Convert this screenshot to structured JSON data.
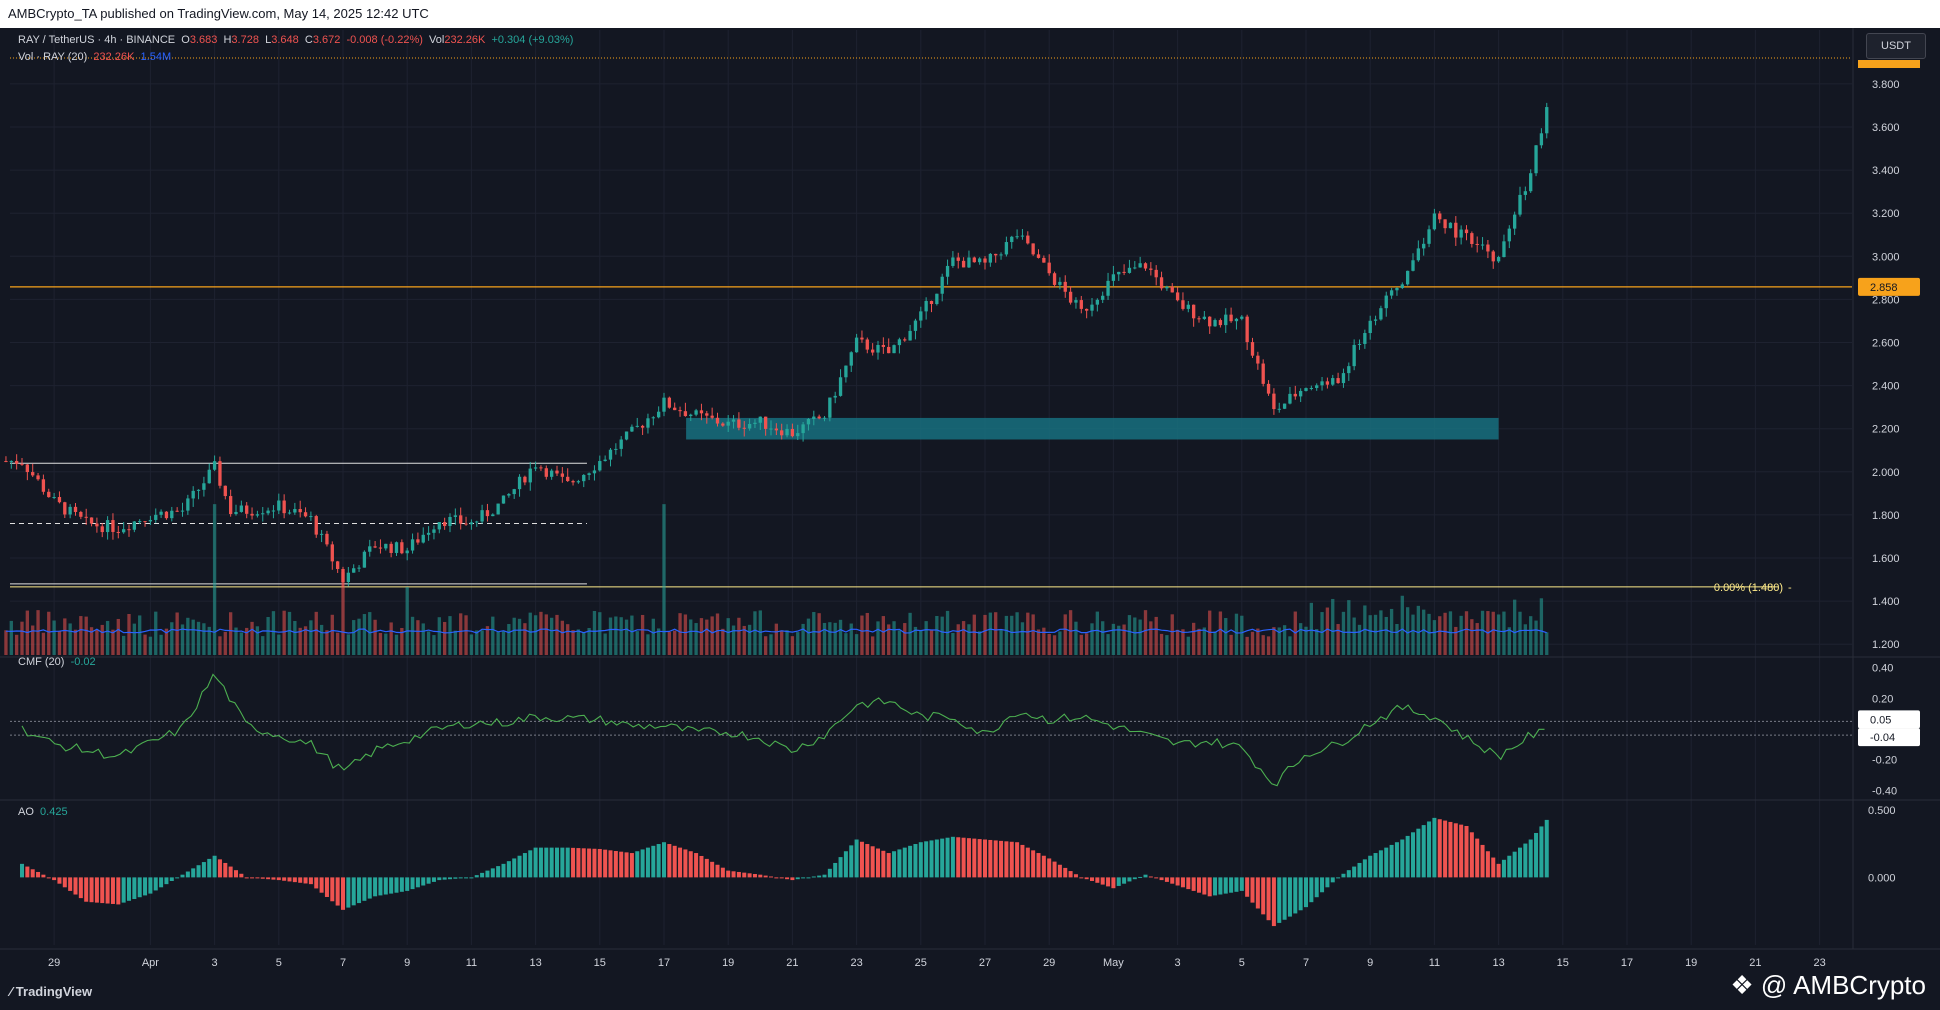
{
  "header": {
    "published": "AMBCrypto_TA published on TradingView.com, May 14, 2025 12:42 UTC"
  },
  "legend": {
    "symbol": "RAY / TetherUS · 4h · BINANCE",
    "o_label": "O",
    "o": "3.683",
    "h_label": "H",
    "h": "3.728",
    "l_label": "L",
    "l": "3.648",
    "c_label": "C",
    "c": "3.672",
    "change": "-0.008 (-0.22%)",
    "vol_label": "Vol",
    "vol": "232.26K",
    "vol_change": "+0.304 (+9.03%)",
    "vol_line_label": "Vol · RAY (20)",
    "vol_value": "232.26K",
    "vol_ma": "1.54M"
  },
  "currency_button": "USDT",
  "cmf": {
    "label": "CMF (20)",
    "value": "-0.02",
    "badge_upper": "0.05",
    "badge_lower": "-0.04"
  },
  "ao": {
    "label": "AO",
    "value": "0.425"
  },
  "level_label": "0.00% (1.480)",
  "price_badge": "2.858",
  "footer": {
    "tradingview": "TradingView",
    "watermark": "@ AMBCrypto"
  },
  "colors": {
    "background": "#131722",
    "up": "#26a69a",
    "down": "#ef5350",
    "resistance": "#f7a21b",
    "demand_zone": "#17707f",
    "fib": "#ffeb8a",
    "cmf_line": "#4caf50",
    "vol_ma": "#2962ff"
  },
  "chart_data": [
    {
      "type": "candlestick",
      "pane": "price",
      "timeframe": "4h",
      "y_axis_ticks": [
        "3.800",
        "3.600",
        "3.400",
        "3.200",
        "3.000",
        "2.800",
        "2.600",
        "2.400",
        "2.200",
        "2.000",
        "1.800",
        "1.600",
        "1.400",
        "1.200"
      ],
      "ylim": [
        1.15,
        4.05
      ],
      "x_axis_ticks": [
        "29",
        "Apr",
        "3",
        "5",
        "7",
        "9",
        "11",
        "13",
        "15",
        "17",
        "19",
        "21",
        "23",
        "25",
        "27",
        "29",
        "May",
        "3",
        "5",
        "7",
        "9",
        "11",
        "13",
        "15",
        "17",
        "19",
        "21",
        "23"
      ],
      "horizontal_levels": [
        {
          "name": "resistance",
          "value": 2.858
        },
        {
          "name": "range-high",
          "value": 2.04
        },
        {
          "name": "range-mid",
          "value": 1.76
        },
        {
          "name": "range-low",
          "value": 1.48
        },
        {
          "name": "fib-0",
          "value": 1.48
        }
      ],
      "demand_zone": {
        "from": 2.15,
        "to": 2.25,
        "start": "Apr 18",
        "end": "May 13"
      },
      "series_path": [
        [
          "Mar 28",
          2.05
        ],
        [
          "Mar 29",
          1.86
        ],
        [
          "Mar 30",
          1.76
        ],
        [
          "Mar 31",
          1.74
        ],
        [
          "Apr 1",
          1.8
        ],
        [
          "Apr 2",
          1.82
        ],
        [
          "Apr 3",
          2.02
        ],
        [
          "Apr 3.5",
          1.82
        ],
        [
          "Apr 4",
          1.82
        ],
        [
          "Apr 5",
          1.84
        ],
        [
          "Apr 6",
          1.78
        ],
        [
          "Apr 7",
          1.5
        ],
        [
          "Apr 8",
          1.66
        ],
        [
          "Apr 9",
          1.64
        ],
        [
          "Apr 10",
          1.78
        ],
        [
          "Apr 11",
          1.76
        ],
        [
          "Apr 12",
          1.86
        ],
        [
          "Apr 13",
          2.04
        ],
        [
          "Apr 14",
          1.94
        ],
        [
          "Apr 15",
          2.05
        ],
        [
          "Apr 16",
          2.18
        ],
        [
          "Apr 17",
          2.32
        ],
        [
          "Apr 18",
          2.26
        ],
        [
          "Apr 19",
          2.22
        ],
        [
          "Apr 20",
          2.23
        ],
        [
          "Apr 21",
          2.18
        ],
        [
          "Apr 22",
          2.26
        ],
        [
          "Apr 23",
          2.6
        ],
        [
          "Apr 24",
          2.55
        ],
        [
          "Apr 25",
          2.72
        ],
        [
          "Apr 26",
          2.98
        ],
        [
          "Apr 27",
          2.96
        ],
        [
          "Apr 28",
          3.1
        ],
        [
          "Apr 29",
          2.92
        ],
        [
          "Apr 30",
          2.74
        ],
        [
          "May 1",
          2.9
        ],
        [
          "May 2",
          2.96
        ],
        [
          "May 3",
          2.78
        ],
        [
          "May 4",
          2.7
        ],
        [
          "May 5",
          2.7
        ],
        [
          "May 6",
          2.28
        ],
        [
          "May 7",
          2.4
        ],
        [
          "May 8",
          2.42
        ],
        [
          "May 9",
          2.7
        ],
        [
          "May 10",
          2.88
        ],
        [
          "May 11",
          3.18
        ],
        [
          "May 12",
          3.08
        ],
        [
          "May 13",
          2.98
        ],
        [
          "May 14",
          3.4
        ],
        [
          "May 14.5",
          3.67
        ]
      ]
    },
    {
      "type": "bar",
      "pane": "volume",
      "name": "Vol · RAY (20)",
      "spikes": [
        [
          "Apr 3",
          1.0
        ],
        [
          "Apr 7",
          0.55
        ],
        [
          "Apr 9",
          0.45
        ],
        [
          "Apr 17",
          1.0
        ]
      ]
    },
    {
      "type": "line",
      "pane": "cmf",
      "name": "CMF (20)",
      "y_axis_ticks": [
        "0.40",
        "0.20",
        "-0.20",
        "-0.40"
      ],
      "ylim": [
        -0.45,
        0.45
      ],
      "series_path": [
        [
          "Mar 28",
          0.0
        ],
        [
          "Mar 29",
          -0.1
        ],
        [
          "Mar 31",
          -0.18
        ],
        [
          "Apr 2",
          0.0
        ],
        [
          "Apr 3",
          0.36
        ],
        [
          "Apr 4",
          0.02
        ],
        [
          "Apr 6",
          -0.1
        ],
        [
          "Apr 7",
          -0.28
        ],
        [
          "Apr 8",
          -0.14
        ],
        [
          "Apr 10",
          0.0
        ],
        [
          "Apr 11",
          0.04
        ],
        [
          "Apr 12",
          0.04
        ],
        [
          "Apr 13",
          0.08
        ],
        [
          "Apr 15",
          0.06
        ],
        [
          "Apr 16",
          0.02
        ],
        [
          "Apr 17",
          0.02
        ],
        [
          "Apr 18",
          -0.02
        ],
        [
          "Apr 19",
          -0.02
        ],
        [
          "Apr 20",
          -0.06
        ],
        [
          "Apr 21",
          -0.14
        ],
        [
          "Apr 22",
          -0.04
        ],
        [
          "Apr 23",
          0.16
        ],
        [
          "Apr 24",
          0.18
        ],
        [
          "Apr 25",
          0.08
        ],
        [
          "Apr 26",
          0.08
        ],
        [
          "Apr 27",
          -0.04
        ],
        [
          "Apr 28",
          0.12
        ],
        [
          "Apr 29",
          0.06
        ],
        [
          "Apr 30",
          0.08
        ],
        [
          "May 1",
          0.02
        ],
        [
          "May 2",
          -0.04
        ],
        [
          "May 3",
          -0.1
        ],
        [
          "May 4",
          -0.08
        ],
        [
          "May 5",
          -0.12
        ],
        [
          "May 6",
          -0.36
        ],
        [
          "May 7",
          -0.16
        ],
        [
          "May 8",
          -0.1
        ],
        [
          "May 9",
          0.04
        ],
        [
          "May 10",
          0.14
        ],
        [
          "May 11",
          0.08
        ],
        [
          "May 12",
          -0.06
        ],
        [
          "May 13",
          -0.18
        ],
        [
          "May 14",
          -0.04
        ],
        [
          "May 14.5",
          -0.02
        ]
      ]
    },
    {
      "type": "bar",
      "pane": "ao",
      "name": "AO",
      "y_axis_ticks": [
        "0.500",
        "0.000"
      ],
      "ylim": [
        -0.5,
        0.55
      ],
      "series_path": [
        [
          "Mar 28",
          0.1
        ],
        [
          "Mar 29",
          -0.02
        ],
        [
          "Mar 30",
          -0.18
        ],
        [
          "Mar 31",
          -0.2
        ],
        [
          "Apr 1",
          -0.12
        ],
        [
          "Apr 2",
          0.02
        ],
        [
          "Apr 3",
          0.16
        ],
        [
          "Apr 4",
          0.0
        ],
        [
          "Apr 5",
          -0.02
        ],
        [
          "Apr 6",
          -0.05
        ],
        [
          "Apr 7",
          -0.24
        ],
        [
          "Apr 8",
          -0.14
        ],
        [
          "Apr 9",
          -0.1
        ],
        [
          "Apr 10",
          -0.02
        ],
        [
          "Apr 11",
          0.0
        ],
        [
          "Apr 12",
          0.1
        ],
        [
          "Apr 13",
          0.22
        ],
        [
          "Apr 14",
          0.22
        ],
        [
          "Apr 15",
          0.21
        ],
        [
          "Apr 16",
          0.18
        ],
        [
          "Apr 17",
          0.26
        ],
        [
          "Apr 18",
          0.18
        ],
        [
          "Apr 19",
          0.05
        ],
        [
          "Apr 20",
          0.02
        ],
        [
          "Apr 21",
          -0.02
        ],
        [
          "Apr 22",
          0.02
        ],
        [
          "Apr 23",
          0.28
        ],
        [
          "Apr 24",
          0.18
        ],
        [
          "Apr 25",
          0.26
        ],
        [
          "Apr 26",
          0.3
        ],
        [
          "Apr 27",
          0.28
        ],
        [
          "Apr 28",
          0.26
        ],
        [
          "Apr 29",
          0.14
        ],
        [
          "Apr 30",
          0.0
        ],
        [
          "May 1",
          -0.08
        ],
        [
          "May 2",
          0.02
        ],
        [
          "May 3",
          -0.06
        ],
        [
          "May 4",
          -0.14
        ],
        [
          "May 5",
          -0.1
        ],
        [
          "May 6",
          -0.36
        ],
        [
          "May 7",
          -0.22
        ],
        [
          "May 8",
          0.0
        ],
        [
          "May 9",
          0.16
        ],
        [
          "May 10",
          0.28
        ],
        [
          "May 11",
          0.44
        ],
        [
          "May 12",
          0.38
        ],
        [
          "May 13",
          0.1
        ],
        [
          "May 14",
          0.28
        ],
        [
          "May 14.5",
          0.425
        ]
      ]
    }
  ]
}
